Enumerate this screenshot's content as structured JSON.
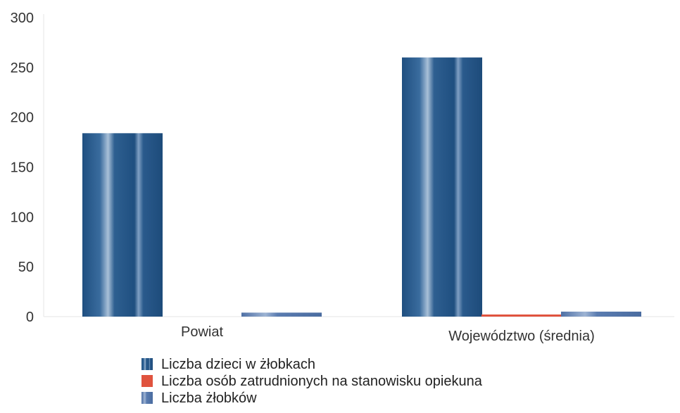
{
  "chart_data": {
    "type": "bar",
    "title": "",
    "xlabel": "",
    "ylabel": "",
    "ylim": [
      0,
      300
    ],
    "yticks": [
      0,
      50,
      100,
      150,
      200,
      250,
      300
    ],
    "grid": false,
    "legend_position": "bottom",
    "categories": [
      "Powiat",
      "Województwo (średnia)"
    ],
    "series": [
      {
        "name": "Liczba dzieci w żłobkach",
        "color": "#2f5f8e",
        "values": [
          184,
          260
        ]
      },
      {
        "name": "Liczba osób zatrudnionych na stanowisku opiekuna",
        "color": "#e0533e",
        "values": [
          0,
          1
        ]
      },
      {
        "name": "Liczba żłobków",
        "color": "#5b7fb3",
        "values": [
          4,
          5
        ]
      }
    ]
  }
}
